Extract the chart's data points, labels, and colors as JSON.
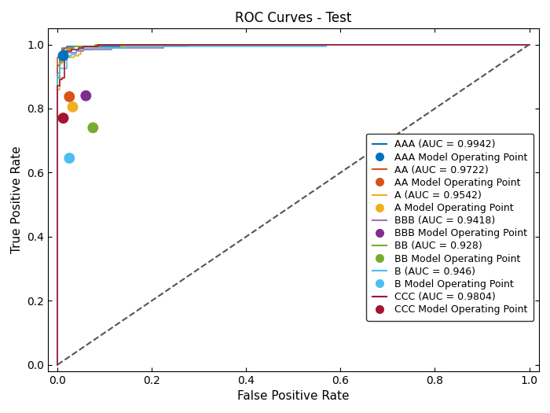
{
  "title": "ROC Curves - Test",
  "xlabel": "False Positive Rate",
  "ylabel": "True Positive Rate",
  "curves": [
    {
      "label": "AAA (AUC = 0.9942)",
      "color": "#0072BD",
      "auc": 0.9942,
      "op_fpr": 0.012,
      "op_tpr": 0.965,
      "op_label": "AAA Model Operating Point",
      "op_color": "#0072BD",
      "seed": 10
    },
    {
      "label": "AA (AUC = 0.9722)",
      "color": "#D95319",
      "auc": 0.9722,
      "op_fpr": 0.025,
      "op_tpr": 0.837,
      "op_label": "AA Model Operating Point",
      "op_color": "#D95319",
      "seed": 20
    },
    {
      "label": "A (AUC = 0.9542)",
      "color": "#EDB120",
      "auc": 0.9542,
      "op_fpr": 0.032,
      "op_tpr": 0.805,
      "op_label": "A Model Operating Point",
      "op_color": "#EDB120",
      "seed": 30
    },
    {
      "label": "BBB (AUC = 0.9418)",
      "color": "#9B72BE",
      "auc": 0.9418,
      "op_fpr": 0.06,
      "op_tpr": 0.84,
      "op_label": "BBB Model Operating Point",
      "op_color": "#7E2F8E",
      "seed": 40
    },
    {
      "label": "BB (AUC = 0.928)",
      "color": "#77AC30",
      "auc": 0.928,
      "op_fpr": 0.075,
      "op_tpr": 0.74,
      "op_label": "BB Model Operating Point",
      "op_color": "#77AC30",
      "seed": 50
    },
    {
      "label": "B (AUC = 0.946)",
      "color": "#4DBEEE",
      "auc": 0.946,
      "op_fpr": 0.025,
      "op_tpr": 0.645,
      "op_label": "B Model Operating Point",
      "op_color": "#4DBEEE",
      "seed": 60
    },
    {
      "label": "CCC (AUC = 0.9804)",
      "color": "#A2142F",
      "auc": 0.9804,
      "op_fpr": 0.012,
      "op_tpr": 0.77,
      "op_label": "CCC Model Operating Point",
      "op_color": "#A2142F",
      "seed": 70
    }
  ],
  "diagonal_color": "#555555",
  "xlim": [
    -0.02,
    1.02
  ],
  "ylim": [
    -0.02,
    1.05
  ],
  "xticks": [
    0,
    0.2,
    0.4,
    0.6,
    0.8,
    1.0
  ],
  "yticks": [
    0,
    0.2,
    0.4,
    0.6,
    0.8,
    1.0
  ],
  "title_fontsize": 12,
  "label_fontsize": 11,
  "legend_fontsize": 9,
  "op_markersize": 100
}
